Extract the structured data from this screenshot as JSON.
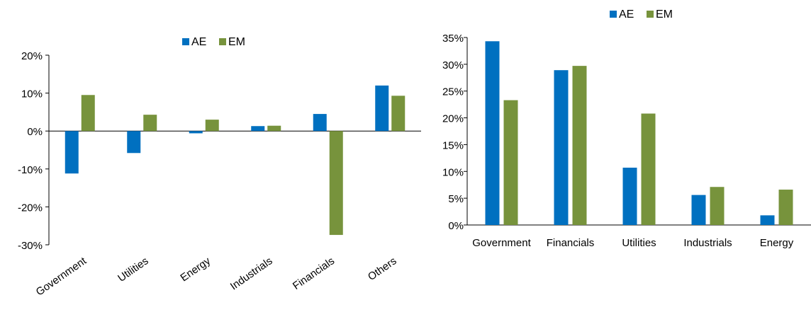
{
  "colors": {
    "AE": "#0070C0",
    "EM": "#77933C"
  },
  "chart_data": [
    {
      "type": "bar",
      "title": "",
      "xlabel": "",
      "ylabel": "",
      "categories": [
        "Government",
        "Utilities",
        "Energy",
        "Industrials",
        "Financials",
        "Others"
      ],
      "series": [
        {
          "name": "AE",
          "values": [
            -11.2,
            -5.8,
            -0.6,
            1.3,
            4.5,
            12.0
          ]
        },
        {
          "name": "EM",
          "values": [
            9.5,
            4.3,
            3.0,
            1.4,
            -27.4,
            9.3
          ]
        }
      ],
      "ylim": [
        -30,
        20
      ],
      "yticks": [
        20,
        10,
        0,
        -10,
        -20,
        -30
      ],
      "yticklabels": [
        "20%",
        "10%",
        "0%",
        "-10%",
        "-20%",
        "-30%"
      ],
      "legend": "top-center",
      "grid": false
    },
    {
      "type": "bar",
      "title": "",
      "xlabel": "",
      "ylabel": "",
      "categories": [
        "Government",
        "Financials",
        "Utilities",
        "Industrials",
        "Energy"
      ],
      "series": [
        {
          "name": "AE",
          "values": [
            34.3,
            28.9,
            10.7,
            5.6,
            1.8
          ]
        },
        {
          "name": "EM",
          "values": [
            23.3,
            29.7,
            20.8,
            7.1,
            6.6
          ]
        }
      ],
      "ylim": [
        0,
        35
      ],
      "yticks": [
        35,
        30,
        25,
        20,
        15,
        10,
        5,
        0
      ],
      "yticklabels": [
        "35%",
        "30%",
        "25%",
        "20%",
        "15%",
        "10%",
        "5%",
        "0%"
      ],
      "legend": "top-center",
      "grid": false
    }
  ]
}
